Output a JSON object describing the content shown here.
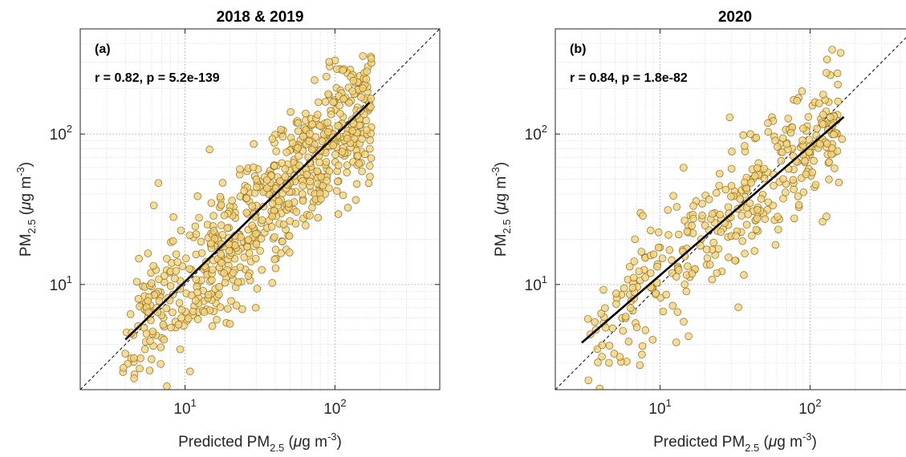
{
  "chart_data": [
    {
      "type": "scatter",
      "title": "2018 & 2019",
      "panel_label": "(a)",
      "stats_text": "r = 0.82, p = 5.2e-139",
      "xlabel": {
        "prefix": "Predicted PM",
        "sub": "2.5",
        "unit_open": " (",
        "mu": "μ",
        "unit_mid": "g m",
        "exp": "-3",
        "unit_close": ")"
      },
      "ylabel": {
        "prefix": "PM",
        "sub": "2.5",
        "unit_open": " (",
        "mu": "μ",
        "unit_mid": "g m",
        "exp": "-3",
        "unit_close": ")"
      },
      "xscale": "log",
      "yscale": "log",
      "xlim": [
        2,
        500
      ],
      "ylim": [
        2,
        500
      ],
      "xticks": [
        {
          "base": "10",
          "exp": "1"
        },
        {
          "base": "10",
          "exp": "2"
        }
      ],
      "yticks": [
        {
          "base": "10",
          "exp": "1"
        },
        {
          "base": "10",
          "exp": "2"
        }
      ],
      "grid": "on (major and minor)",
      "identity_line": true,
      "fit_line": {
        "x": [
          4,
          170
        ],
        "y": [
          4.3,
          162
        ]
      },
      "marker_color": "#f5d27a",
      "marker_edge": "#8a6d1f",
      "points": {
        "n": 720,
        "seed": 11,
        "x_range": [
          3.8,
          175
        ],
        "slope": 0.975,
        "intercept": 0.02,
        "scatter": 0.24
      }
    },
    {
      "type": "scatter",
      "title": "2020",
      "panel_label": "(b)",
      "stats_text": "r = 0.84, p = 1.8e-82",
      "xlabel": {
        "prefix": "Predicted PM",
        "sub": "2.5",
        "unit_open": " (",
        "mu": "μ",
        "unit_mid": "g m",
        "exp": "-3",
        "unit_close": ")"
      },
      "ylabel": {
        "prefix": "PM",
        "sub": "2.5",
        "unit_open": " (",
        "mu": "μ",
        "unit_mid": "g m",
        "exp": "-3",
        "unit_close": ")"
      },
      "xscale": "log",
      "yscale": "log",
      "xlim": [
        2,
        500
      ],
      "ylim": [
        2,
        500
      ],
      "xticks": [
        {
          "base": "10",
          "exp": "1"
        },
        {
          "base": "10",
          "exp": "2"
        }
      ],
      "yticks": [
        {
          "base": "10",
          "exp": "1"
        },
        {
          "base": "10",
          "exp": "2"
        }
      ],
      "grid": "on (major and minor)",
      "identity_line": true,
      "fit_line": {
        "x": [
          3,
          168
        ],
        "y": [
          4.1,
          130
        ]
      },
      "marker_color": "#f5d27a",
      "marker_edge": "#8a6d1f",
      "points": {
        "n": 380,
        "seed": 29,
        "x_range": [
          3,
          170
        ],
        "slope": 0.86,
        "intercept": 0.2,
        "scatter": 0.22
      }
    }
  ]
}
